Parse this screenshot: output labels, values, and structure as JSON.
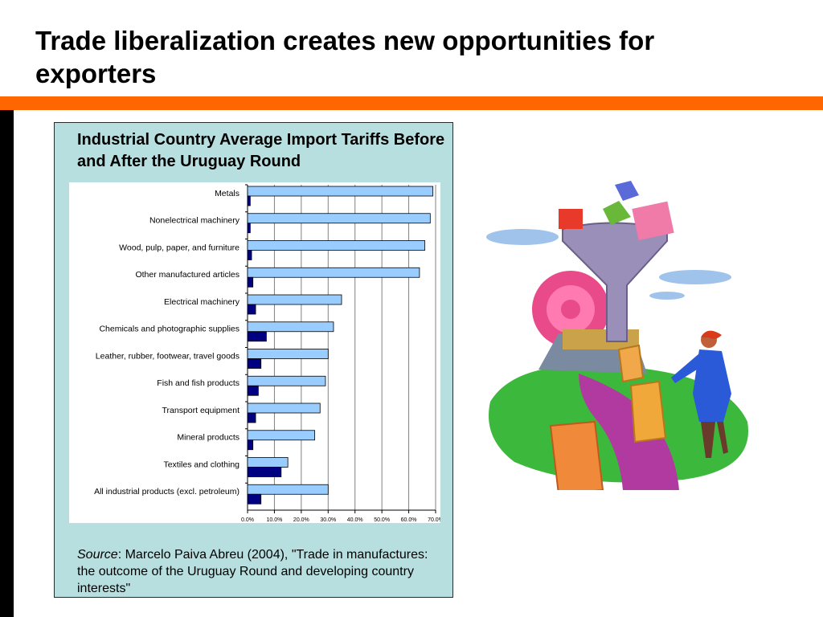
{
  "slide": {
    "title": "Trade liberalization creates new opportunities for exporters"
  },
  "colors": {
    "accent_bar": "#ff6600",
    "panel_bg": "#b8dfe0",
    "before_bar": "#99ccff",
    "after_bar": "#000080"
  },
  "chart_data": {
    "type": "bar",
    "orientation": "horizontal",
    "title": "Industrial Country Average Import Tariffs Before and After the Uruguay Round",
    "categories": [
      "Metals",
      "Nonelectrical machinery",
      "Wood, pulp, paper, and furniture",
      "Other manufactured articles",
      "Electrical machinery",
      "Chemicals and photographic supplies",
      "Leather, rubber, footwear, travel goods",
      "Fish and fish products",
      "Transport equipment",
      "Mineral products",
      "Textiles and clothing",
      "All industrial products (excl. petroleum)"
    ],
    "series": [
      {
        "values": [
          69,
          68,
          66,
          64,
          35,
          32,
          30,
          29,
          27,
          25,
          15,
          30
        ],
        "color": "#99ccff"
      },
      {
        "values": [
          1,
          1,
          1.5,
          2,
          3,
          7,
          5,
          4,
          3,
          2,
          12.5,
          5
        ],
        "color": "#000080"
      }
    ],
    "xlim": [
      0,
      70
    ],
    "xticks": [
      "0.0%",
      "10.0%",
      "20.0%",
      "30.0%",
      "40.0%",
      "50.0%",
      "60.0%",
      "70.0%"
    ],
    "grid": true,
    "legend": "none"
  },
  "source": {
    "label": "Source",
    "text": ":  Marcelo Paiva Abreu (2004), \"Trade in manufactures: the outcome of the Uruguay Round and developing country interests\""
  }
}
